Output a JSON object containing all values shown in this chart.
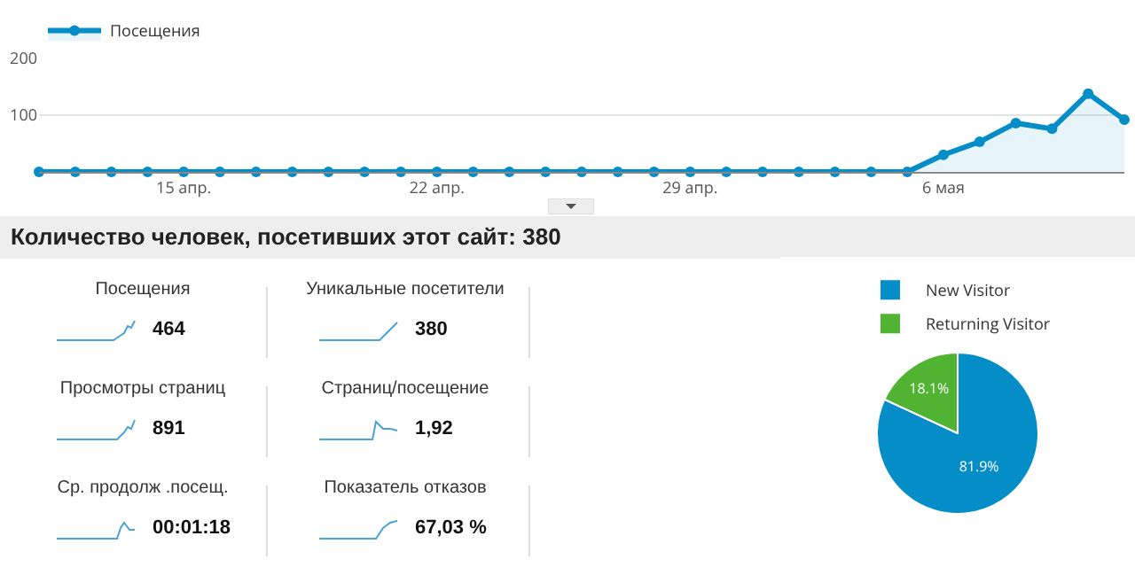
{
  "chart_data": [
    {
      "type": "area",
      "categories": [
        null,
        null,
        null,
        null,
        "15 апр.",
        null,
        null,
        null,
        null,
        null,
        null,
        "22 апр.",
        null,
        null,
        null,
        null,
        null,
        null,
        "29 апр.",
        null,
        null,
        null,
        null,
        null,
        null,
        "6 мая",
        null,
        null,
        null,
        null,
        null
      ],
      "series": [
        {
          "name": "Посещения",
          "color": "#058dc7",
          "values": [
            0,
            0,
            0,
            0,
            0,
            0,
            0,
            0,
            0,
            0,
            0,
            0,
            0,
            0,
            0,
            0,
            0,
            0,
            0,
            0,
            0,
            0,
            0,
            0,
            0,
            30,
            53,
            86,
            76,
            138,
            92
          ]
        }
      ],
      "ylim": [
        0,
        200
      ],
      "yticks": [
        100,
        200
      ],
      "grid": "y",
      "legend": "top left",
      "marker": "circle"
    },
    {
      "type": "other",
      "title": "Количество человек, посетивших этот сайт: 380",
      "annotations": [
        "Посещения",
        "464",
        "Уникальные посетители",
        "380",
        "Просмотры страниц",
        "891",
        "Страниц/посещение",
        "1,92",
        "Ср. продолж .посещ.",
        "00:01:18",
        "Показатель отказов",
        "67,03 %"
      ]
    },
    {
      "type": "pie",
      "categories": [
        "New Visitor",
        "Returning Visitor"
      ],
      "values": [
        81.9,
        18.1
      ],
      "colors": [
        "#058dc7",
        "#50b432"
      ],
      "value_labels": [
        "81.9%",
        "18.1%"
      ],
      "legend": "top"
    }
  ]
}
